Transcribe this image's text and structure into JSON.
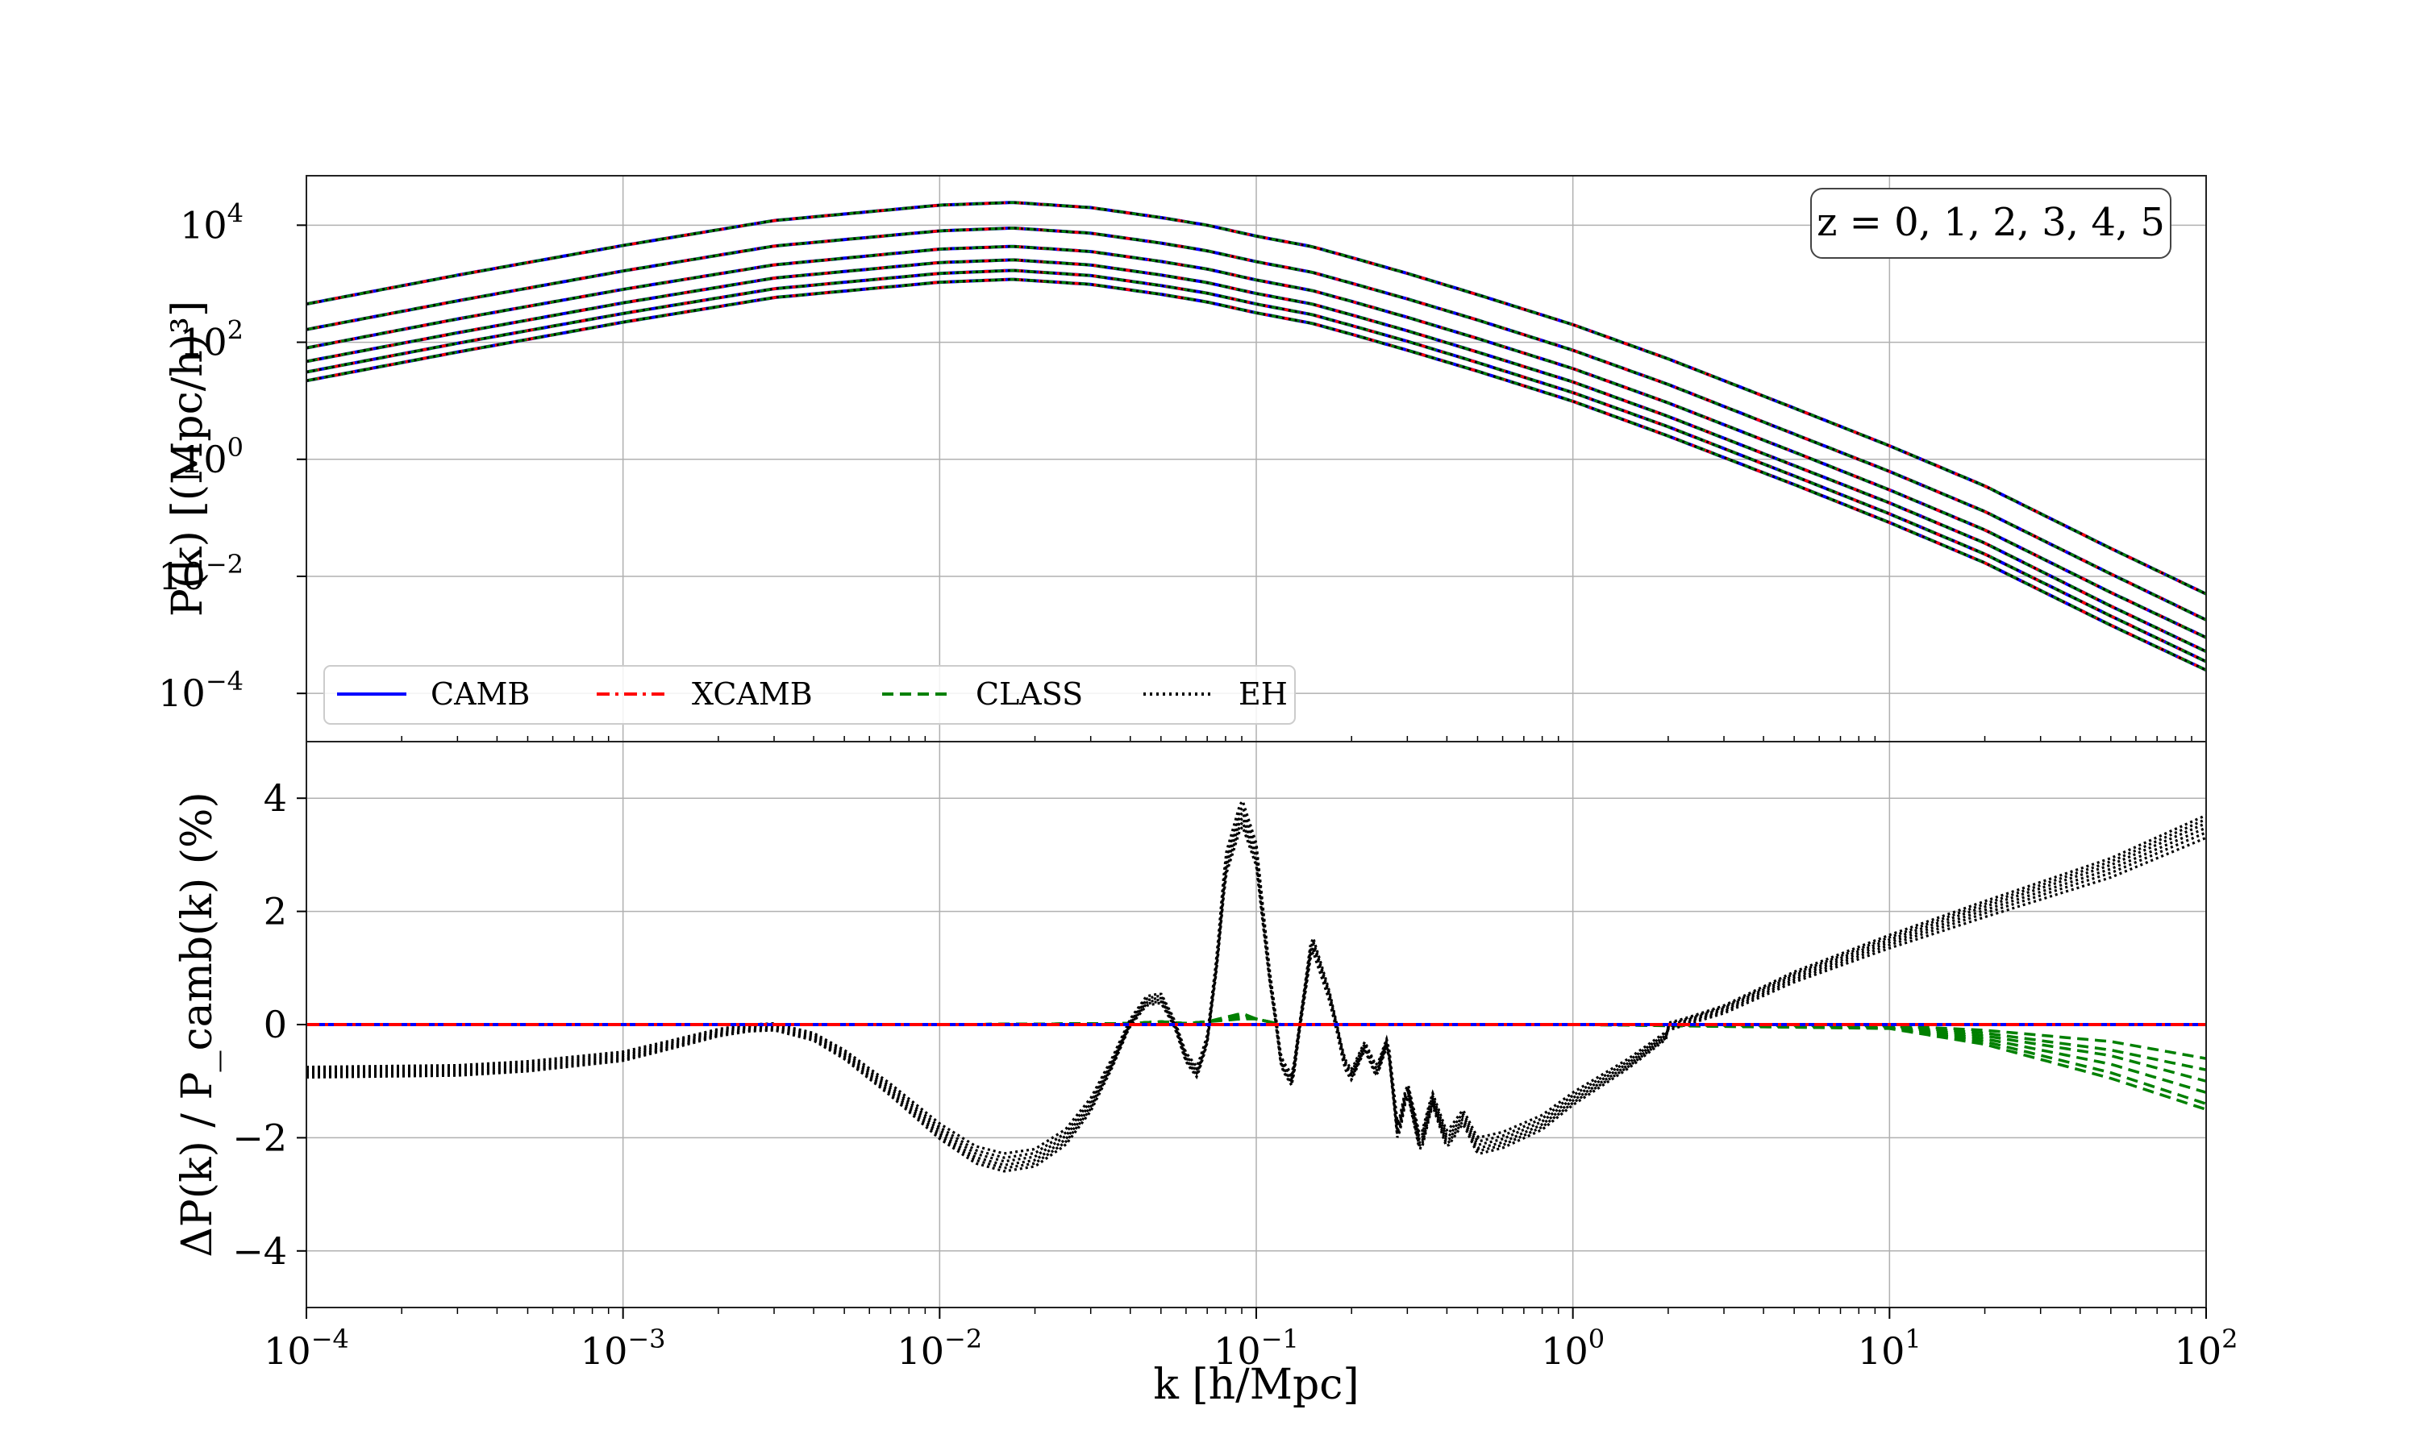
{
  "chart_data": [
    {
      "type": "line",
      "panel": "top",
      "title": "",
      "ylabel": "P(k) [(Mpc/h)³]",
      "xscale": "log",
      "yscale": "log",
      "xlim": [
        0.0001,
        100
      ],
      "ylim": [
        1.5e-05,
        70000
      ],
      "yticks": [
        {
          "base": "10",
          "exp": "4"
        },
        {
          "base": "10",
          "exp": "2"
        },
        {
          "base": "10",
          "exp": "0"
        },
        {
          "base": "10",
          "exp": "−2"
        },
        {
          "base": "10",
          "exp": "−4"
        }
      ],
      "ytick_values": [
        10000,
        100,
        1,
        0.01,
        0.0001
      ],
      "grid": true,
      "annotation": "z = 0, 1, 2, 3, 4, 5",
      "annotation_placement": "top-right",
      "legend_placement": "lower-left",
      "legend": [
        {
          "label": "CAMB",
          "color": "#0000ff",
          "style": "solid"
        },
        {
          "label": "XCAMB",
          "color": "#ff0000",
          "style": "dashdot"
        },
        {
          "label": "CLASS",
          "color": "#008000",
          "style": "dashed"
        },
        {
          "label": "EH",
          "color": "#000000",
          "style": "dotted"
        }
      ],
      "x": [
        0.0001,
        0.0003,
        0.001,
        0.003,
        0.01,
        0.017,
        0.03,
        0.05,
        0.07,
        0.1,
        0.15,
        0.2,
        0.3,
        0.5,
        1,
        2,
        5,
        10,
        20,
        50,
        100
      ],
      "series": [
        {
          "z": 0,
          "values": [
            450,
            1400,
            4500,
            12000,
            22000,
            24500,
            20000,
            13500,
            10000,
            6500,
            4300,
            2800,
            1500,
            650,
            200,
            52,
            7.5,
            1.7,
            0.35,
            0.03,
            0.005
          ]
        },
        {
          "z": 1,
          "values": [
            165,
            510,
            1650,
            4400,
            8000,
            8950,
            7300,
            4950,
            3650,
            2380,
            1570,
            1020,
            550,
            240,
            73,
            19,
            2.7,
            0.62,
            0.128,
            0.011,
            0.0018
          ]
        },
        {
          "z": 2,
          "values": [
            80,
            250,
            800,
            2100,
            3900,
            4350,
            3550,
            2400,
            1780,
            1160,
            765,
            500,
            267,
            116,
            35.5,
            9.2,
            1.33,
            0.3,
            0.062,
            0.0053,
            0.0009
          ]
        },
        {
          "z": 3,
          "values": [
            47,
            145,
            470,
            1250,
            2300,
            2560,
            2090,
            1410,
            1045,
            680,
            450,
            293,
            157,
            68,
            21,
            5.4,
            0.78,
            0.18,
            0.037,
            0.0031,
            0.00052
          ]
        },
        {
          "z": 4,
          "values": [
            31,
            96,
            310,
            820,
            1500,
            1690,
            1380,
            930,
            690,
            450,
            297,
            193,
            104,
            45,
            13.8,
            3.6,
            0.52,
            0.117,
            0.024,
            0.0021,
            0.00035
          ]
        },
        {
          "z": 5,
          "values": [
            22,
            68,
            220,
            580,
            1060,
            1190,
            975,
            660,
            487,
            318,
            210,
            137,
            73,
            32,
            9.8,
            2.5,
            0.37,
            0.083,
            0.017,
            0.00146,
            0.00025
          ]
        }
      ]
    },
    {
      "type": "line",
      "panel": "bottom",
      "ylabel": "ΔP(k) / P_camb(k) (%)",
      "xlabel": "k [h/Mpc]",
      "xscale": "log",
      "xlim": [
        0.0001,
        100
      ],
      "ylim": [
        -5,
        5
      ],
      "yticks": [
        "4",
        "2",
        "0",
        "−2",
        "−4"
      ],
      "ytick_values": [
        4,
        2,
        0,
        -2,
        -4
      ],
      "xticks": [
        {
          "base": "10",
          "exp": "−4"
        },
        {
          "base": "10",
          "exp": "−3"
        },
        {
          "base": "10",
          "exp": "−2"
        },
        {
          "base": "10",
          "exp": "−1"
        },
        {
          "base": "10",
          "exp": "0"
        },
        {
          "base": "10",
          "exp": "1"
        },
        {
          "base": "10",
          "exp": "2"
        }
      ],
      "xtick_values": [
        0.0001,
        0.001,
        0.01,
        0.1,
        1,
        10,
        100
      ],
      "grid": true,
      "eh_x": [
        0.0001,
        0.0003,
        0.0005,
        0.001,
        0.0015,
        0.002,
        0.0025,
        0.003,
        0.004,
        0.005,
        0.007,
        0.01,
        0.013,
        0.016,
        0.02,
        0.025,
        0.03,
        0.035,
        0.04,
        0.045,
        0.05,
        0.055,
        0.06,
        0.065,
        0.07,
        0.075,
        0.08,
        0.09,
        0.1,
        0.11,
        0.12,
        0.13,
        0.15,
        0.17,
        0.19,
        0.2,
        0.22,
        0.24,
        0.26,
        0.28,
        0.3,
        0.33,
        0.36,
        0.4,
        0.45,
        0.5,
        0.6,
        0.8,
        1,
        1.5,
        2,
        3,
        5,
        10,
        20,
        50,
        100
      ],
      "eh_values": [
        -0.75,
        -0.72,
        -0.65,
        -0.48,
        -0.25,
        -0.08,
        0.0,
        0.02,
        -0.15,
        -0.45,
        -1.05,
        -1.75,
        -2.15,
        -2.28,
        -2.2,
        -1.85,
        -1.3,
        -0.6,
        0.1,
        0.5,
        0.55,
        0.1,
        -0.5,
        -0.75,
        -0.2,
        1.2,
        3.0,
        4.0,
        3.2,
        1.0,
        -0.6,
        -0.9,
        1.6,
        0.6,
        -0.6,
        -0.8,
        -0.3,
        -0.75,
        -0.2,
        -1.8,
        -1.0,
        -2.0,
        -1.2,
        -1.9,
        -1.5,
        -2.0,
        -1.9,
        -1.6,
        -1.2,
        -0.6,
        -0.1,
        0.2,
        0.75,
        1.35,
        1.9,
        2.6,
        3.3
      ],
      "eh_z_offsets": [
        0.0,
        -0.08,
        -0.15,
        -0.22,
        -0.28,
        -0.34
      ],
      "class_x": [
        0.0001,
        0.001,
        0.01,
        0.04,
        0.05,
        0.06,
        0.07,
        0.09,
        0.1,
        0.12,
        1,
        10,
        20,
        50,
        100
      ],
      "class_curves": [
        [
          0,
          0,
          0,
          0.02,
          0.05,
          0.02,
          0.05,
          0.2,
          0.1,
          0.0,
          0,
          -0.02,
          -0.1,
          -0.3,
          -0.6
        ],
        [
          0,
          0,
          0,
          0.02,
          0.05,
          0.02,
          0.05,
          0.18,
          0.1,
          0.0,
          0,
          -0.03,
          -0.15,
          -0.45,
          -0.8
        ],
        [
          0,
          0,
          0,
          0.02,
          0.05,
          0.02,
          0.05,
          0.16,
          0.1,
          0.0,
          0,
          -0.04,
          -0.2,
          -0.55,
          -1.0
        ],
        [
          0,
          0,
          0,
          0.02,
          0.05,
          0.02,
          0.05,
          0.14,
          0.1,
          0.0,
          0,
          -0.05,
          -0.25,
          -0.7,
          -1.2
        ],
        [
          0,
          0,
          0,
          0.02,
          0.05,
          0.02,
          0.05,
          0.12,
          0.1,
          0.0,
          0,
          -0.06,
          -0.3,
          -0.85,
          -1.4
        ],
        [
          0,
          0,
          0,
          0.02,
          0.05,
          0.02,
          0.05,
          0.1,
          0.1,
          0.0,
          0,
          -0.07,
          -0.35,
          -0.95,
          -1.5
        ]
      ],
      "camb_values": [
        0,
        0
      ],
      "xcamb_values": [
        0,
        0
      ]
    }
  ]
}
